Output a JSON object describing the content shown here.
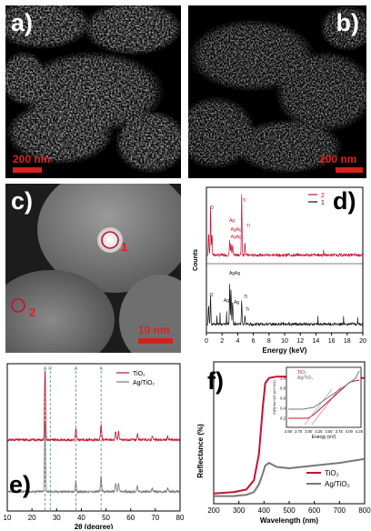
{
  "panels": {
    "a": {
      "label": "a)",
      "scale": "200 nm"
    },
    "b": {
      "label": "b)",
      "scale": "200 nm"
    },
    "c": {
      "label": "c)",
      "scale": "10 nm",
      "markers": [
        "1",
        "2"
      ]
    },
    "d": {
      "label": "d)"
    },
    "e": {
      "label": "e)"
    },
    "f": {
      "label": "f)"
    }
  },
  "colors": {
    "red": "#c8102e",
    "black": "#111111",
    "gray": "#777777"
  },
  "chart_data": [
    {
      "type": "line",
      "panel": "d",
      "xlabel": "Energy (keV)",
      "ylabel": "Counts",
      "xlim": [
        0,
        20
      ],
      "xticks": [
        0,
        2,
        4,
        6,
        8,
        10,
        12,
        14,
        16,
        18,
        20
      ],
      "legend": {
        "position": "top-right",
        "entries": [
          "2",
          "1"
        ]
      },
      "series": [
        {
          "name": "2",
          "color": "#c8102e",
          "peaks": [
            [
              0.28,
              0.35
            ],
            [
              0.53,
              0.75
            ],
            [
              0.7,
              0.3
            ],
            [
              2.98,
              0.22
            ],
            [
              3.15,
              0.18
            ],
            [
              3.35,
              0.14
            ],
            [
              4.51,
              0.95
            ],
            [
              4.93,
              0.2
            ]
          ]
        },
        {
          "name": "1",
          "color": "#111111",
          "peaks": [
            [
              0.28,
              0.3
            ],
            [
              0.53,
              0.45
            ],
            [
              2.98,
              0.62
            ],
            [
              3.15,
              0.55
            ],
            [
              3.35,
              0.35
            ],
            [
              4.51,
              0.38
            ],
            [
              4.93,
              0.12
            ]
          ]
        }
      ],
      "annotations": {
        "top": [
          "O",
          "Ag",
          "AgAg",
          "AgAg",
          "Ti",
          "Ti"
        ],
        "bottom": [
          "O",
          "AgAg",
          "Ag",
          "Ag",
          "Ti",
          "Ti"
        ]
      }
    },
    {
      "type": "line",
      "panel": "e",
      "xlabel": "2θ (degree)",
      "xlim": [
        10,
        80
      ],
      "xticks": [
        10,
        20,
        30,
        40,
        50,
        60,
        70,
        80
      ],
      "legend": {
        "position": "top-right",
        "entries": [
          "TiO₂",
          "Ag/TiO₂"
        ]
      },
      "reference_lines": [
        25.3,
        27.4,
        37.8,
        48.0
      ],
      "reference_labels": [
        "A",
        "R",
        "A",
        "A"
      ],
      "series": [
        {
          "name": "TiO₂",
          "color": "#c8102e",
          "peaks": [
            [
              25.3,
              1.0
            ],
            [
              37.8,
              0.15
            ],
            [
              48.0,
              0.22
            ],
            [
              53.9,
              0.12
            ],
            [
              55.1,
              0.12
            ],
            [
              62.7,
              0.08
            ],
            [
              68.8,
              0.05
            ],
            [
              75.0,
              0.05
            ]
          ]
        },
        {
          "name": "Ag/TiO₂",
          "color": "#777777",
          "peaks": [
            [
              25.3,
              1.0
            ],
            [
              37.8,
              0.15
            ],
            [
              48.0,
              0.22
            ],
            [
              53.9,
              0.12
            ],
            [
              55.1,
              0.12
            ],
            [
              62.7,
              0.08
            ],
            [
              68.8,
              0.05
            ],
            [
              75.0,
              0.05
            ]
          ]
        }
      ]
    },
    {
      "type": "line",
      "panel": "f",
      "xlabel": "Wavelength (nm)",
      "ylabel": "Reflectance (%)",
      "xlim": [
        200,
        800
      ],
      "xticks": [
        200,
        300,
        400,
        500,
        600,
        700,
        800
      ],
      "legend": {
        "position": "bottom-right",
        "entries": [
          "TiO₂",
          "Ag/TiO₂"
        ]
      },
      "series": [
        {
          "name": "TiO₂",
          "color": "#c8102e",
          "x": [
            200,
            280,
            330,
            360,
            380,
            395,
            405,
            420,
            450,
            500,
            600,
            700,
            800
          ],
          "y": [
            5,
            6,
            8,
            15,
            35,
            70,
            88,
            92,
            93,
            93,
            93,
            92,
            92
          ]
        },
        {
          "name": "Ag/TiO₂",
          "color": "#777777",
          "x": [
            200,
            280,
            330,
            360,
            380,
            395,
            405,
            420,
            450,
            500,
            600,
            700,
            800
          ],
          "y": [
            3,
            3,
            4,
            6,
            12,
            20,
            26,
            28,
            25,
            24,
            26,
            28,
            31
          ]
        }
      ],
      "inset": {
        "xlabel": "Energy (eV)",
        "ylabel": "F(R)*hν^1/2 (eV^1/2)",
        "xticks": [
          "2.50",
          "2.75",
          "3.00",
          "3.25",
          "3.50",
          "3.75",
          "4.00",
          "4.25"
        ],
        "yticks": [
          "0.2",
          "0.4",
          "0.6",
          "0.8",
          "1.0"
        ],
        "legend": [
          "TiO₂",
          "Ag/TiO₂"
        ]
      }
    }
  ]
}
